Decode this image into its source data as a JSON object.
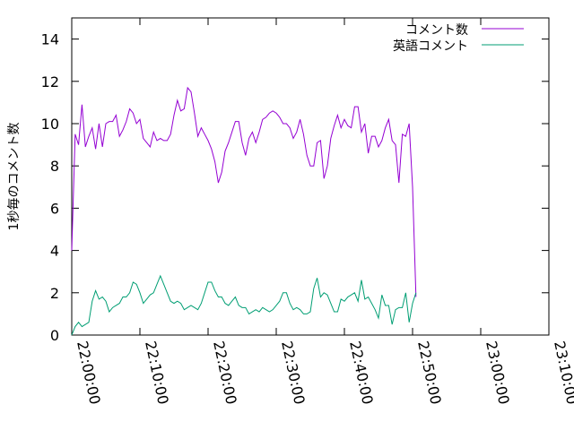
{
  "chart_data": {
    "type": "line",
    "title": "",
    "xlabel": "",
    "ylabel": "1秒毎のコメント数",
    "xlim": [
      "22:00:00",
      "23:10:00"
    ],
    "ylim": [
      0,
      15
    ],
    "x_ticks": [
      "22:00:00",
      "22:10:00",
      "22:20:00",
      "22:30:00",
      "22:40:00",
      "22:50:00",
      "23:00:00",
      "23:10:00"
    ],
    "y_ticks": [
      0,
      2,
      4,
      6,
      8,
      10,
      12,
      14
    ],
    "legend_position": "top-right",
    "grid": false,
    "x_step_seconds": 30,
    "series": [
      {
        "name": "コメント数",
        "color": "#9400d3",
        "x_start": "22:00:00",
        "values": [
          4.0,
          9.5,
          9.0,
          10.9,
          8.9,
          9.4,
          9.8,
          8.8,
          10.0,
          8.9,
          10.0,
          10.1,
          10.1,
          10.4,
          9.4,
          9.7,
          10.1,
          10.7,
          10.5,
          10.0,
          10.2,
          9.3,
          9.1,
          8.9,
          9.6,
          9.2,
          9.3,
          9.2,
          9.2,
          9.5,
          10.4,
          11.1,
          10.6,
          10.7,
          11.7,
          11.5,
          10.5,
          9.4,
          9.8,
          9.5,
          9.2,
          8.8,
          8.2,
          7.2,
          7.7,
          8.7,
          9.1,
          9.6,
          10.1,
          10.1,
          9.1,
          8.5,
          9.3,
          9.6,
          9.1,
          9.6,
          10.2,
          10.3,
          10.5,
          10.6,
          10.5,
          10.3,
          10.0,
          10.0,
          9.8,
          9.3,
          9.6,
          10.2,
          9.5,
          8.5,
          8.0,
          8.0,
          9.1,
          9.2,
          7.4,
          8.0,
          9.3,
          9.9,
          10.4,
          9.8,
          10.2,
          9.9,
          9.8,
          10.8,
          10.8,
          9.6,
          10.0,
          8.6,
          9.4,
          9.4,
          8.9,
          9.2,
          9.8,
          10.2,
          9.2,
          9.0,
          7.2,
          9.5,
          9.4,
          10.0,
          7.0,
          1.8
        ]
      },
      {
        "name": "英語コメント",
        "color": "#009e73",
        "x_start": "22:00:00",
        "values": [
          0.0,
          0.4,
          0.6,
          0.4,
          0.5,
          0.6,
          1.6,
          2.1,
          1.7,
          1.8,
          1.6,
          1.1,
          1.3,
          1.4,
          1.5,
          1.8,
          1.8,
          2.0,
          2.5,
          2.4,
          2.0,
          1.5,
          1.7,
          1.9,
          2.0,
          2.4,
          2.8,
          2.4,
          2.0,
          1.6,
          1.5,
          1.6,
          1.5,
          1.2,
          1.3,
          1.4,
          1.3,
          1.2,
          1.5,
          2.0,
          2.5,
          2.5,
          2.1,
          1.8,
          1.8,
          1.5,
          1.4,
          1.6,
          1.8,
          1.4,
          1.3,
          1.3,
          1.0,
          1.1,
          1.2,
          1.1,
          1.3,
          1.2,
          1.1,
          1.2,
          1.4,
          1.6,
          2.0,
          2.0,
          1.5,
          1.2,
          1.3,
          1.2,
          1.0,
          1.0,
          1.1,
          2.2,
          2.7,
          1.8,
          2.0,
          1.9,
          1.5,
          1.1,
          1.1,
          1.7,
          1.6,
          1.8,
          1.9,
          2.0,
          1.6,
          2.6,
          1.7,
          1.8,
          1.5,
          1.2,
          0.8,
          1.9,
          1.4,
          1.4,
          0.5,
          1.2,
          1.3,
          1.3,
          2.0,
          0.6,
          1.5,
          2.0
        ]
      }
    ]
  }
}
